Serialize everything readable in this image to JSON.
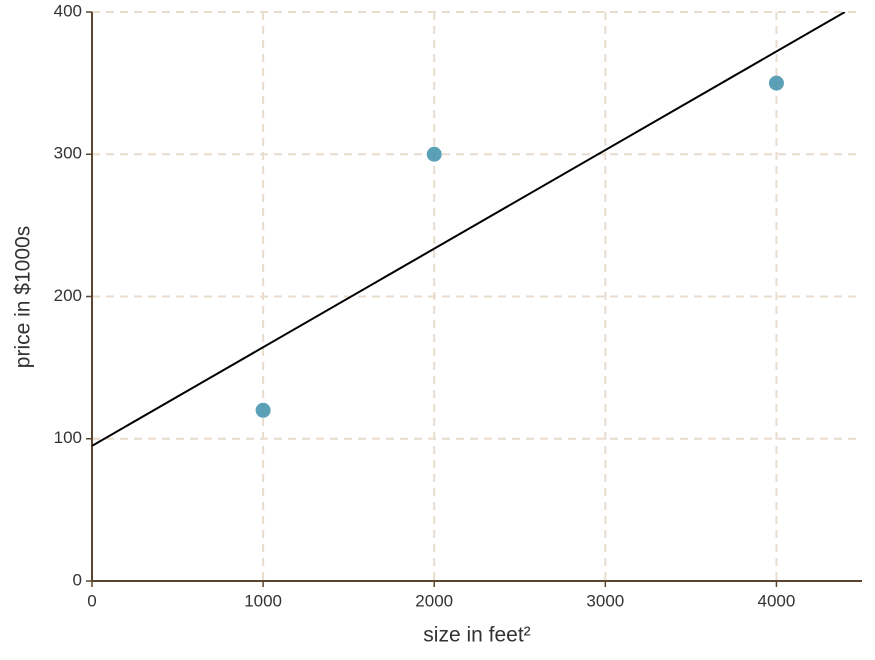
{
  "chart_data": {
    "type": "scatter",
    "xlabel": "size in feet²",
    "ylabel": "price in $1000s",
    "series": [
      {
        "type": "scatter",
        "color": "#4a96b0",
        "x": [
          1000,
          2000,
          4000
        ],
        "values": [
          120,
          300,
          350
        ]
      },
      {
        "type": "line",
        "color": "#000000",
        "x": [
          0,
          4400
        ],
        "values": [
          95,
          400
        ]
      }
    ],
    "xlim": [
      0,
      4500
    ],
    "ylim": [
      0,
      400
    ],
    "xticks": [
      0,
      1000,
      2000,
      3000,
      4000
    ],
    "yticks": [
      0,
      100,
      200,
      300,
      400
    ],
    "grid": true,
    "grid_color": "#e8dccd",
    "axis_color": "#5a4630"
  }
}
